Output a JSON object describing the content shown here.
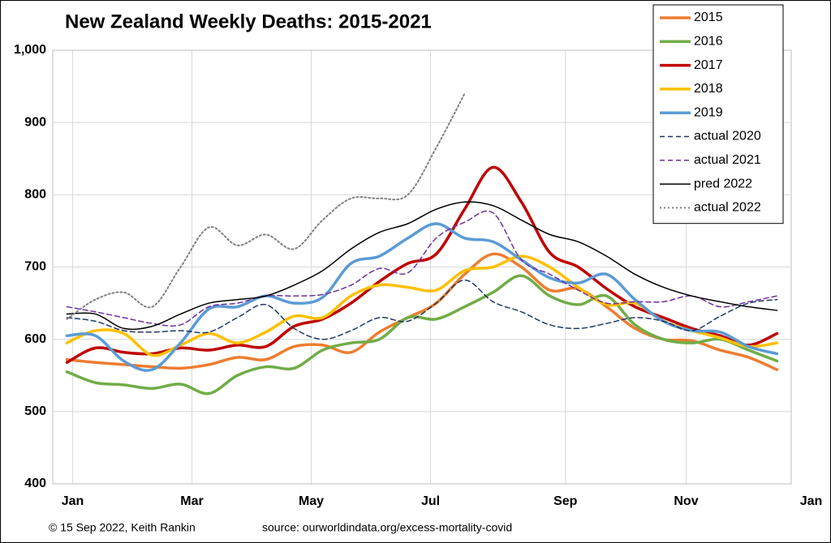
{
  "chart_data": {
    "type": "line",
    "title": "New Zealand Weekly Deaths: 2015-2021",
    "footnote": "© 15 Sep 2022, Keith Rankin",
    "source": "source: ourworldindata.org/excess-mortality-covid",
    "x": [
      1,
      3,
      5,
      7,
      9,
      11,
      13,
      15,
      17,
      19,
      21,
      23,
      25,
      27,
      29,
      31,
      33,
      35,
      37,
      39,
      41,
      43,
      45,
      47,
      49,
      51
    ],
    "xlim": [
      0,
      52
    ],
    "xticks": [
      {
        "value": 1.4,
        "label": "Jan"
      },
      {
        "value": 9.8,
        "label": "Mar"
      },
      {
        "value": 18.2,
        "label": "May"
      },
      {
        "value": 26.6,
        "label": "Jul"
      },
      {
        "value": 36.1,
        "label": "Sep"
      },
      {
        "value": 44.6,
        "label": "Nov"
      },
      {
        "value": 53.4,
        "label": "Jan"
      }
    ],
    "ylim": [
      400,
      1000
    ],
    "yticks": [
      400,
      500,
      600,
      700,
      800,
      900,
      {
        "value": 1000,
        "label": "1,000"
      }
    ],
    "grid": true,
    "legend": "top-right",
    "series": [
      {
        "name": "2015",
        "color": "#ed7d31",
        "width": 3.5,
        "dash": "solid",
        "values": [
          572,
          568,
          565,
          562,
          560,
          565,
          575,
          572,
          590,
          592,
          582,
          610,
          630,
          650,
          690,
          718,
          700,
          668,
          670,
          645,
          615,
          600,
          598,
          585,
          575,
          558
        ]
      },
      {
        "name": "2016",
        "color": "#70ad47",
        "width": 3.5,
        "dash": "solid",
        "values": [
          555,
          540,
          537,
          532,
          538,
          525,
          550,
          562,
          560,
          585,
          595,
          600,
          630,
          628,
          645,
          665,
          688,
          660,
          648,
          660,
          620,
          600,
          595,
          600,
          585,
          570
        ]
      },
      {
        "name": "2017",
        "color": "#c00000",
        "width": 3.5,
        "dash": "solid",
        "values": [
          568,
          588,
          582,
          580,
          588,
          585,
          592,
          590,
          618,
          628,
          650,
          680,
          705,
          718,
          780,
          838,
          790,
          720,
          700,
          670,
          645,
          630,
          615,
          605,
          592,
          608
        ]
      },
      {
        "name": "2018",
        "color": "#ffc000",
        "width": 3.5,
        "dash": "solid",
        "values": [
          595,
          612,
          608,
          578,
          592,
          608,
          595,
          610,
          632,
          630,
          660,
          675,
          672,
          668,
          695,
          700,
          715,
          700,
          672,
          648,
          650,
          625,
          612,
          602,
          590,
          595
        ]
      },
      {
        "name": "2019",
        "color": "#5b9bd5",
        "width": 3.5,
        "dash": "solid",
        "values": [
          605,
          605,
          570,
          558,
          595,
          642,
          645,
          660,
          650,
          658,
          705,
          715,
          740,
          760,
          740,
          735,
          710,
          685,
          678,
          690,
          655,
          625,
          612,
          610,
          590,
          580
        ]
      },
      {
        "name": "actual 2020",
        "color": "#1f3864",
        "width": 1.5,
        "dash": "dashed",
        "values": [
          630,
          625,
          612,
          610,
          612,
          610,
          630,
          648,
          615,
          600,
          612,
          630,
          625,
          650,
          682,
          652,
          638,
          620,
          615,
          622,
          630,
          625,
          612,
          632,
          650,
          655
        ]
      },
      {
        "name": "actual 2021",
        "color": "#7030a0",
        "width": 1.5,
        "dash": "dashed",
        "values": [
          645,
          638,
          630,
          622,
          620,
          645,
          650,
          660,
          660,
          662,
          675,
          698,
          692,
          740,
          762,
          775,
          710,
          690,
          668,
          650,
          652,
          652,
          660,
          645,
          652,
          660
        ]
      },
      {
        "name": "pred 2022",
        "color": "#000000",
        "width": 1.5,
        "dash": "solid",
        "values": [
          635,
          635,
          615,
          618,
          635,
          650,
          655,
          660,
          675,
          695,
          725,
          748,
          760,
          780,
          790,
          785,
          765,
          745,
          735,
          715,
          690,
          672,
          660,
          652,
          645,
          640
        ]
      },
      {
        "name": "actual 2022",
        "color": "#808080",
        "width": 2,
        "dash": "dotted",
        "values": [
          628,
          655,
          665,
          645,
          700,
          755,
          730,
          745,
          725,
          765,
          795,
          795,
          800,
          865,
          940,
          null,
          null,
          null,
          null,
          null,
          null,
          null,
          null,
          null,
          null,
          null
        ]
      }
    ]
  }
}
